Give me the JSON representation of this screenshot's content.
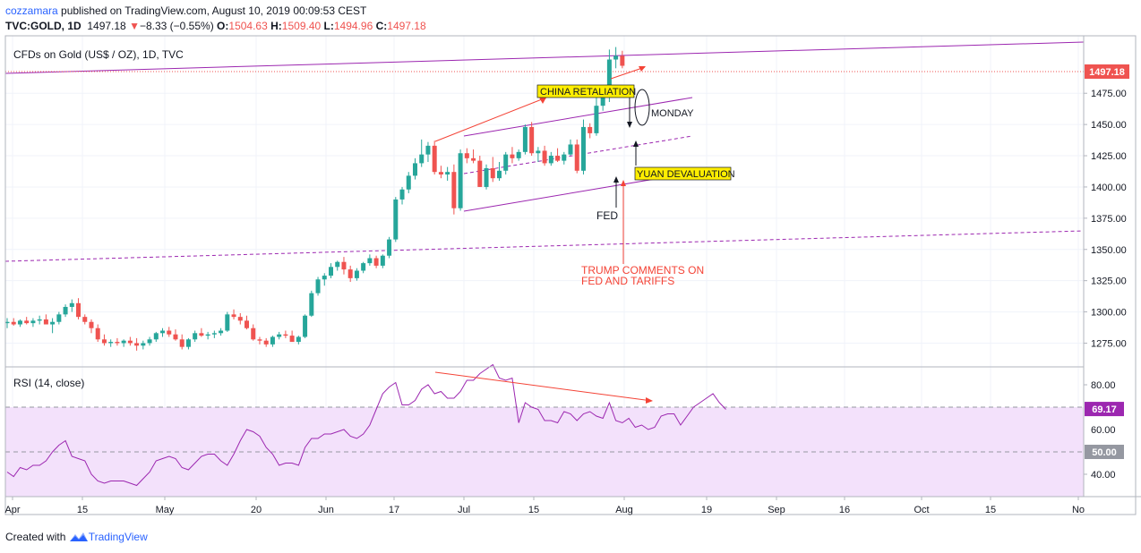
{
  "header": {
    "author": "cozzamara",
    "published_text": " published on TradingView.com, August 10, 2019 00:09:53 CEST",
    "symbol": "TVC:GOLD, 1D",
    "last": "1497.18",
    "change": "−8.33 (−0.55%)",
    "o_label": "O:",
    "o_value": "1504.63",
    "h_label": "H:",
    "h_value": "1509.40",
    "l_label": "L:",
    "l_value": "1494.96",
    "c_label": "C:",
    "c_value": "1497.18"
  },
  "footer": {
    "text": "Created with",
    "brand": "TradingView"
  },
  "colors": {
    "up": "#26a69a",
    "down": "#ef5350",
    "trend": "#9c27b0",
    "rsi_line": "#9c27b0",
    "rsi_band": "#f3e1fb",
    "annotation": "#f44336",
    "label_bg": "#ffee00"
  },
  "chart_data": [
    {
      "type": "candlestick",
      "title": "CFDs on Gold (US$ / OZ), 1D, TVC",
      "x_ticks": [
        "Apr",
        "15",
        "May",
        "20",
        "Jun",
        "17",
        "Jul",
        "15",
        "Aug",
        "19",
        "Sep",
        "16",
        "Oct",
        "15",
        "No"
      ],
      "y_ticks": [
        1275,
        1300,
        1325,
        1350,
        1375,
        1400,
        1425,
        1450,
        1475
      ],
      "y_range": [
        1256,
        1521
      ],
      "last_price_label": "1497.18",
      "candles": [
        [
          1291,
          1295,
          1287,
          1292
        ],
        [
          1292,
          1295,
          1289,
          1290
        ],
        [
          1290,
          1294,
          1288,
          1293
        ],
        [
          1293,
          1296,
          1290,
          1291
        ],
        [
          1291,
          1295,
          1288,
          1293
        ],
        [
          1293,
          1297,
          1290,
          1294
        ],
        [
          1294,
          1298,
          1291,
          1290
        ],
        [
          1290,
          1295,
          1283,
          1292
        ],
        [
          1292,
          1300,
          1290,
          1298
        ],
        [
          1298,
          1306,
          1296,
          1304
        ],
        [
          1304,
          1310,
          1300,
          1307
        ],
        [
          1307,
          1311,
          1294,
          1296
        ],
        [
          1296,
          1298,
          1290,
          1292
        ],
        [
          1292,
          1294,
          1283,
          1287
        ],
        [
          1287,
          1290,
          1276,
          1278
        ],
        [
          1278,
          1282,
          1273,
          1275
        ],
        [
          1275,
          1278,
          1272,
          1276
        ],
        [
          1276,
          1279,
          1273,
          1275
        ],
        [
          1275,
          1278,
          1272,
          1277
        ],
        [
          1277,
          1280,
          1273,
          1275
        ],
        [
          1275,
          1279,
          1269,
          1273
        ],
        [
          1273,
          1277,
          1270,
          1275
        ],
        [
          1275,
          1280,
          1273,
          1278
        ],
        [
          1278,
          1284,
          1276,
          1283
        ],
        [
          1283,
          1287,
          1280,
          1285
        ],
        [
          1285,
          1288,
          1280,
          1282
        ],
        [
          1282,
          1286,
          1277,
          1278
        ],
        [
          1278,
          1282,
          1270,
          1272
        ],
        [
          1272,
          1279,
          1270,
          1278
        ],
        [
          1278,
          1285,
          1276,
          1283
        ],
        [
          1283,
          1287,
          1280,
          1281
        ],
        [
          1281,
          1284,
          1278,
          1282
        ],
        [
          1282,
          1285,
          1279,
          1283
        ],
        [
          1283,
          1287,
          1281,
          1285
        ],
        [
          1285,
          1300,
          1284,
          1298
        ],
        [
          1298,
          1302,
          1294,
          1296
        ],
        [
          1296,
          1299,
          1290,
          1293
        ],
        [
          1293,
          1297,
          1286,
          1287
        ],
        [
          1287,
          1290,
          1277,
          1278
        ],
        [
          1278,
          1280,
          1274,
          1277
        ],
        [
          1277,
          1279,
          1272,
          1274
        ],
        [
          1274,
          1281,
          1272,
          1280
        ],
        [
          1280,
          1284,
          1278,
          1282
        ],
        [
          1282,
          1285,
          1279,
          1281
        ],
        [
          1281,
          1285,
          1277,
          1276
        ],
        [
          1276,
          1281,
          1274,
          1280
        ],
        [
          1280,
          1298,
          1279,
          1297
        ],
        [
          1297,
          1317,
          1296,
          1315
        ],
        [
          1315,
          1328,
          1313,
          1326
        ],
        [
          1326,
          1331,
          1321,
          1329
        ],
        [
          1329,
          1339,
          1327,
          1336
        ],
        [
          1336,
          1341,
          1333,
          1340
        ],
        [
          1340,
          1344,
          1330,
          1334
        ],
        [
          1334,
          1337,
          1324,
          1327
        ],
        [
          1327,
          1335,
          1325,
          1333
        ],
        [
          1333,
          1340,
          1331,
          1339
        ],
        [
          1339,
          1346,
          1337,
          1343
        ],
        [
          1343,
          1345,
          1335,
          1337
        ],
        [
          1337,
          1346,
          1335,
          1345
        ],
        [
          1345,
          1360,
          1343,
          1358
        ],
        [
          1358,
          1392,
          1356,
          1390
        ],
        [
          1390,
          1400,
          1386,
          1398
        ],
        [
          1398,
          1412,
          1395,
          1409
        ],
        [
          1409,
          1423,
          1406,
          1419
        ],
        [
          1419,
          1438,
          1416,
          1426
        ],
        [
          1426,
          1436,
          1420,
          1433
        ],
        [
          1433,
          1437,
          1410,
          1412
        ],
        [
          1412,
          1417,
          1407,
          1410
        ],
        [
          1410,
          1416,
          1405,
          1412
        ],
        [
          1412,
          1418,
          1378,
          1383
        ],
        [
          1383,
          1430,
          1381,
          1427
        ],
        [
          1427,
          1431,
          1419,
          1423
        ],
        [
          1423,
          1430,
          1419,
          1421
        ],
        [
          1421,
          1425,
          1400,
          1400
        ],
        [
          1400,
          1418,
          1398,
          1415
        ],
        [
          1415,
          1424,
          1404,
          1407
        ],
        [
          1407,
          1420,
          1405,
          1413
        ],
        [
          1413,
          1428,
          1410,
          1426
        ],
        [
          1426,
          1432,
          1419,
          1423
        ],
        [
          1423,
          1430,
          1421,
          1428
        ],
        [
          1428,
          1450,
          1426,
          1448
        ],
        [
          1448,
          1452,
          1425,
          1427
        ],
        [
          1427,
          1432,
          1420,
          1429
        ],
        [
          1429,
          1433,
          1417,
          1419
        ],
        [
          1419,
          1428,
          1417,
          1425
        ],
        [
          1425,
          1431,
          1420,
          1421
        ],
        [
          1421,
          1428,
          1418,
          1426
        ],
        [
          1426,
          1438,
          1425,
          1434
        ],
        [
          1434,
          1438,
          1411,
          1413
        ],
        [
          1413,
          1454,
          1410,
          1448
        ],
        [
          1448,
          1451,
          1439,
          1443
        ],
        [
          1443,
          1474,
          1441,
          1465
        ],
        [
          1465,
          1478,
          1461,
          1472
        ],
        [
          1472,
          1510,
          1468,
          1502
        ],
        [
          1502,
          1512,
          1495,
          1505
        ],
        [
          1505,
          1509,
          1495,
          1497
        ]
      ],
      "annotations": [
        {
          "label": "CHINA RETALIATION"
        },
        {
          "label": "YUAN DEVALUATION"
        },
        {
          "label": "MONDAY"
        },
        {
          "label": "FED"
        },
        {
          "label": "TRUMP COMMENTS ON"
        },
        {
          "label": "FED AND TARIFFS"
        }
      ]
    },
    {
      "type": "line",
      "title": "RSI (14, close)",
      "y_ticks": [
        40,
        50,
        60,
        80
      ],
      "y_range": [
        30,
        88
      ],
      "band": [
        30,
        70
      ],
      "last_value_label": "69.17",
      "mid_value_label": "50.00",
      "values": [
        41,
        39,
        43,
        42,
        44,
        44,
        46,
        50,
        53,
        55,
        48,
        47,
        46,
        40,
        37,
        36,
        37,
        37,
        37,
        36,
        35,
        38,
        41,
        46,
        47,
        48,
        47,
        43,
        42,
        45,
        48,
        49,
        49,
        46,
        44,
        49,
        55,
        60,
        59,
        57,
        52,
        49,
        44,
        45,
        45,
        44,
        52,
        56,
        56,
        58,
        58,
        59,
        60,
        57,
        56,
        58,
        62,
        69,
        76,
        79,
        81,
        71,
        71,
        73,
        78,
        80,
        76,
        77,
        74,
        74,
        77,
        82,
        82,
        85,
        87,
        89,
        83,
        82,
        83,
        63,
        72,
        70,
        69,
        64,
        64,
        63,
        68,
        67,
        64,
        67,
        68,
        66,
        65,
        72,
        64,
        63,
        65,
        61,
        62,
        60,
        61,
        66,
        67,
        67,
        62,
        66,
        70,
        72,
        74,
        76,
        72,
        69
      ]
    }
  ]
}
